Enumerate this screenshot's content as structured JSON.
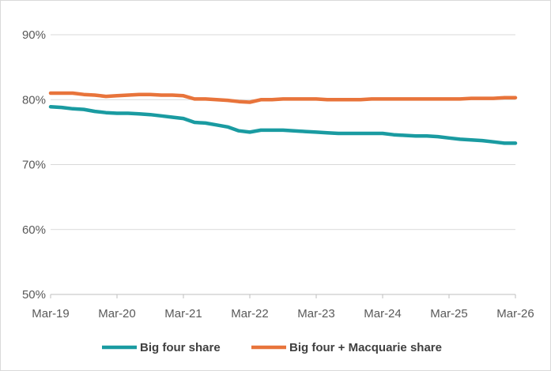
{
  "chart_data": {
    "type": "line",
    "title": "",
    "xlabel": "",
    "ylabel": "",
    "ylim": [
      50,
      90
    ],
    "yticks": [
      50,
      60,
      70,
      80,
      90
    ],
    "ytick_labels": [
      "50%",
      "60%",
      "70%",
      "80%",
      "90%"
    ],
    "xlim": [
      0,
      84
    ],
    "xticks": [
      0,
      12,
      24,
      36,
      48,
      60,
      72,
      84
    ],
    "xtick_labels": [
      "Mar-19",
      "Mar-20",
      "Mar-21",
      "Mar-22",
      "Mar-23",
      "Mar-24",
      "Mar-25",
      "Mar-26"
    ],
    "grid": "horizontal",
    "legend": "bottom",
    "series": [
      {
        "name": "Big four share",
        "color": "#1a9ba1",
        "x": [
          0,
          2,
          4,
          6,
          8,
          10,
          12,
          14,
          16,
          18,
          20,
          22,
          24,
          26,
          28,
          30,
          32,
          34,
          36,
          38,
          40,
          42,
          44,
          46,
          48,
          50,
          52,
          54,
          56,
          58,
          60,
          62,
          64,
          66,
          68,
          70,
          72,
          74,
          76,
          78,
          80,
          82,
          84
        ],
        "y": [
          78.9,
          78.8,
          78.6,
          78.5,
          78.2,
          78.0,
          77.9,
          77.9,
          77.8,
          77.7,
          77.5,
          77.3,
          77.1,
          76.5,
          76.4,
          76.1,
          75.8,
          75.2,
          75.0,
          75.3,
          75.3,
          75.3,
          75.2,
          75.1,
          75.0,
          74.9,
          74.8,
          74.8,
          74.8,
          74.8,
          74.8,
          74.6,
          74.5,
          74.4,
          74.4,
          74.3,
          74.1,
          73.9,
          73.8,
          73.7,
          73.5,
          73.3,
          73.3
        ]
      },
      {
        "name": "Big four + Macquarie share",
        "color": "#e8743b",
        "x": [
          0,
          2,
          4,
          6,
          8,
          10,
          12,
          14,
          16,
          18,
          20,
          22,
          24,
          26,
          28,
          30,
          32,
          34,
          36,
          38,
          40,
          42,
          44,
          46,
          48,
          50,
          52,
          54,
          56,
          58,
          60,
          62,
          64,
          66,
          68,
          70,
          72,
          74,
          76,
          78,
          80,
          82,
          84
        ],
        "y": [
          81.0,
          81.0,
          81.0,
          80.8,
          80.7,
          80.5,
          80.6,
          80.7,
          80.8,
          80.8,
          80.7,
          80.7,
          80.6,
          80.1,
          80.1,
          80.0,
          79.9,
          79.7,
          79.6,
          80.0,
          80.0,
          80.1,
          80.1,
          80.1,
          80.1,
          80.0,
          80.0,
          80.0,
          80.0,
          80.1,
          80.1,
          80.1,
          80.1,
          80.1,
          80.1,
          80.1,
          80.1,
          80.1,
          80.2,
          80.2,
          80.2,
          80.3,
          80.3
        ]
      }
    ]
  }
}
